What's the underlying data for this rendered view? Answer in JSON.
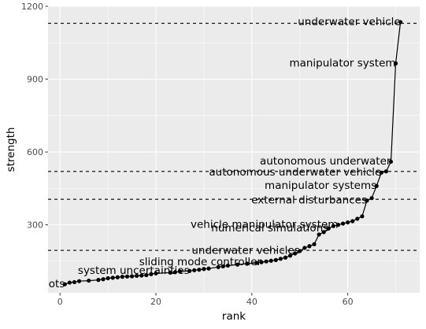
{
  "chart_data": {
    "type": "scatter",
    "title": "",
    "xlabel": "rank",
    "ylabel": "strength",
    "xlim": [
      -2.5,
      75
    ],
    "ylim": [
      20,
      1200
    ],
    "x_ticks": [
      0,
      20,
      40,
      60
    ],
    "y_ticks": [
      300,
      600,
      900,
      1200
    ],
    "x_tick_labels": [
      "0",
      "20",
      "40",
      "60"
    ],
    "y_tick_labels": [
      "300",
      "600",
      "900",
      "1200"
    ],
    "grid": true,
    "background": "#ebebeb",
    "grid_color": "#ffffff",
    "point_color": "#000000",
    "line_connected": true,
    "hlines": [
      1130,
      520,
      405,
      195
    ],
    "hline_style": "dashed",
    "points": [
      [
        1,
        55
      ],
      [
        2,
        62
      ],
      [
        3,
        64
      ],
      [
        4,
        68
      ],
      [
        6,
        70
      ],
      [
        8,
        73
      ],
      [
        9,
        76
      ],
      [
        10,
        80
      ],
      [
        11,
        82
      ],
      [
        12,
        84
      ],
      [
        13,
        86
      ],
      [
        14,
        87
      ],
      [
        15,
        88
      ],
      [
        16,
        90
      ],
      [
        17,
        91
      ],
      [
        18,
        93
      ],
      [
        19,
        97
      ],
      [
        20,
        100
      ],
      [
        23,
        103
      ],
      [
        24,
        105
      ],
      [
        25,
        108
      ],
      [
        27,
        110
      ],
      [
        28,
        113
      ],
      [
        29,
        115
      ],
      [
        30,
        118
      ],
      [
        31,
        120
      ],
      [
        33,
        126
      ],
      [
        34,
        129
      ],
      [
        35,
        132
      ],
      [
        37,
        136
      ],
      [
        39,
        140
      ],
      [
        41,
        143
      ],
      [
        42,
        146
      ],
      [
        43,
        149
      ],
      [
        44,
        152
      ],
      [
        45,
        155
      ],
      [
        46,
        160
      ],
      [
        47,
        165
      ],
      [
        48,
        173
      ],
      [
        49,
        182
      ],
      [
        50,
        192
      ],
      [
        51,
        205
      ],
      [
        52,
        212
      ],
      [
        53,
        220
      ],
      [
        54,
        260
      ],
      [
        55,
        270
      ],
      [
        56,
        285
      ],
      [
        57,
        295
      ],
      [
        58,
        300
      ],
      [
        59,
        305
      ],
      [
        60,
        310
      ],
      [
        61,
        315
      ],
      [
        62,
        325
      ],
      [
        63,
        335
      ],
      [
        64,
        400
      ],
      [
        65,
        410
      ],
      [
        66,
        460
      ],
      [
        67,
        515
      ],
      [
        68,
        520
      ],
      [
        69,
        560
      ],
      [
        70,
        965
      ],
      [
        71,
        1135
      ]
    ],
    "annotations": [
      {
        "text": "underwater vehicle",
        "x": 71,
        "y": 1135
      },
      {
        "text": "manipulator system",
        "x": 70,
        "y": 965
      },
      {
        "text": "autonomous underwater",
        "x": 69,
        "y": 560
      },
      {
        "text": "autonomous underwater vehicle",
        "x": 67,
        "y": 515
      },
      {
        "text": "manipulator systems",
        "x": 66,
        "y": 460
      },
      {
        "text": "external disturbances",
        "x": 64,
        "y": 400
      },
      {
        "text": "vehicle manipulator system",
        "x": 58,
        "y": 300
      },
      {
        "text": "numerical simulations",
        "x": 56,
        "y": 285
      },
      {
        "text": "underwater vehicles",
        "x": 50,
        "y": 192
      },
      {
        "text": "sliding mode controller",
        "x": 42,
        "y": 146
      },
      {
        "text": "system uncertainties",
        "x": 27,
        "y": 110
      },
      {
        "text": "underwater robots",
        "x": 1,
        "y": 55
      }
    ]
  }
}
